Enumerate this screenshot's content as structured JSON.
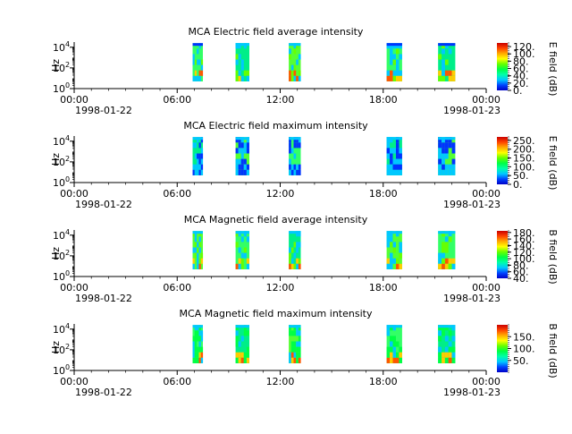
{
  "colors": {
    "cmap": [
      "#0000c8",
      "#0044ff",
      "#00c8ff",
      "#00ffaa",
      "#00ff44",
      "#66ff00",
      "#ffff00",
      "#ffaa00",
      "#ff4400",
      "#c80000"
    ],
    "stripe_cores": [
      "#33ff66",
      "#00ee88",
      "#55ff33"
    ],
    "stripe_accents": [
      "#0033ff",
      "#00c8ff",
      "#ffcc00",
      "#ff5500"
    ]
  },
  "chart_data": [
    {
      "type": "heatmap",
      "title": "MCA  Electric field average intensity",
      "ylabel": "Hz",
      "colorbar_label": "E field (dB)",
      "colorbar_ticks": [
        "120.",
        "100.",
        "80.",
        "60.",
        "40.",
        "20.",
        "0."
      ],
      "colorbar_range": [
        0,
        130
      ],
      "x_ticks": [
        "00:00",
        "06:00",
        "12:00",
        "18:00",
        "00:00"
      ],
      "x_dates": [
        "1998-01-22",
        "1998-01-23"
      ],
      "xlim_hours": [
        0,
        24
      ],
      "ylim_log10": [
        0,
        4.5
      ],
      "y_ticks": [
        0,
        2,
        4
      ],
      "segments_hours": [
        [
          6.9,
          7.5
        ],
        [
          9.4,
          10.2
        ],
        [
          12.5,
          13.2
        ],
        [
          18.2,
          19.1
        ],
        [
          21.2,
          22.2
        ]
      ],
      "freq_band_log10": [
        0.7,
        4.4
      ]
    },
    {
      "type": "heatmap",
      "title": "MCA  Electric field maximum intensity",
      "ylabel": "Hz",
      "colorbar_label": "E field (dB)",
      "colorbar_ticks": [
        "250.",
        "200.",
        "150.",
        "100.",
        "50.",
        "0."
      ],
      "colorbar_range": [
        0,
        270
      ],
      "x_ticks": [
        "00:00",
        "06:00",
        "12:00",
        "18:00",
        "00:00"
      ],
      "x_dates": [
        "1998-01-22",
        "1998-01-23"
      ],
      "xlim_hours": [
        0,
        24
      ],
      "ylim_log10": [
        0,
        4.5
      ],
      "y_ticks": [
        0,
        2,
        4
      ],
      "segments_hours": [
        [
          6.9,
          7.5
        ],
        [
          9.4,
          10.2
        ],
        [
          12.5,
          13.2
        ],
        [
          18.2,
          19.1
        ],
        [
          21.2,
          22.2
        ]
      ],
      "freq_band_log10": [
        0.7,
        4.4
      ]
    },
    {
      "type": "heatmap",
      "title": "MCA  Magnetic field average intensity",
      "ylabel": "Hz",
      "colorbar_label": "B field (dB)",
      "colorbar_ticks": [
        "180.",
        "160.",
        "140.",
        "120.",
        "100.",
        "80.",
        "60.",
        "40."
      ],
      "colorbar_range": [
        40,
        185
      ],
      "x_ticks": [
        "00:00",
        "06:00",
        "12:00",
        "18:00",
        "00:00"
      ],
      "x_dates": [
        "1998-01-22",
        "1998-01-23"
      ],
      "xlim_hours": [
        0,
        24
      ],
      "ylim_log10": [
        0,
        4.5
      ],
      "y_ticks": [
        0,
        2,
        4
      ],
      "segments_hours": [
        [
          6.9,
          7.5
        ],
        [
          9.4,
          10.2
        ],
        [
          12.5,
          13.2
        ],
        [
          18.2,
          19.1
        ],
        [
          21.2,
          22.2
        ]
      ],
      "freq_band_log10": [
        0.7,
        4.4
      ]
    },
    {
      "type": "heatmap",
      "title": "MCA  Magnetic field maximum intensity",
      "ylabel": "Hz",
      "colorbar_label": "B field (dB)",
      "colorbar_ticks": [
        "150.",
        "100.",
        "50."
      ],
      "colorbar_range": [
        0,
        200
      ],
      "x_ticks": [
        "00:00",
        "06:00",
        "12:00",
        "18:00",
        "00:00"
      ],
      "x_dates": [
        "1998-01-22",
        "1998-01-23"
      ],
      "xlim_hours": [
        0,
        24
      ],
      "ylim_log10": [
        0,
        4.5
      ],
      "y_ticks": [
        0,
        2,
        4
      ],
      "segments_hours": [
        [
          6.9,
          7.5
        ],
        [
          9.4,
          10.2
        ],
        [
          12.5,
          13.2
        ],
        [
          18.2,
          19.1
        ],
        [
          21.2,
          22.2
        ]
      ],
      "freq_band_log10": [
        0.7,
        4.4
      ]
    }
  ]
}
